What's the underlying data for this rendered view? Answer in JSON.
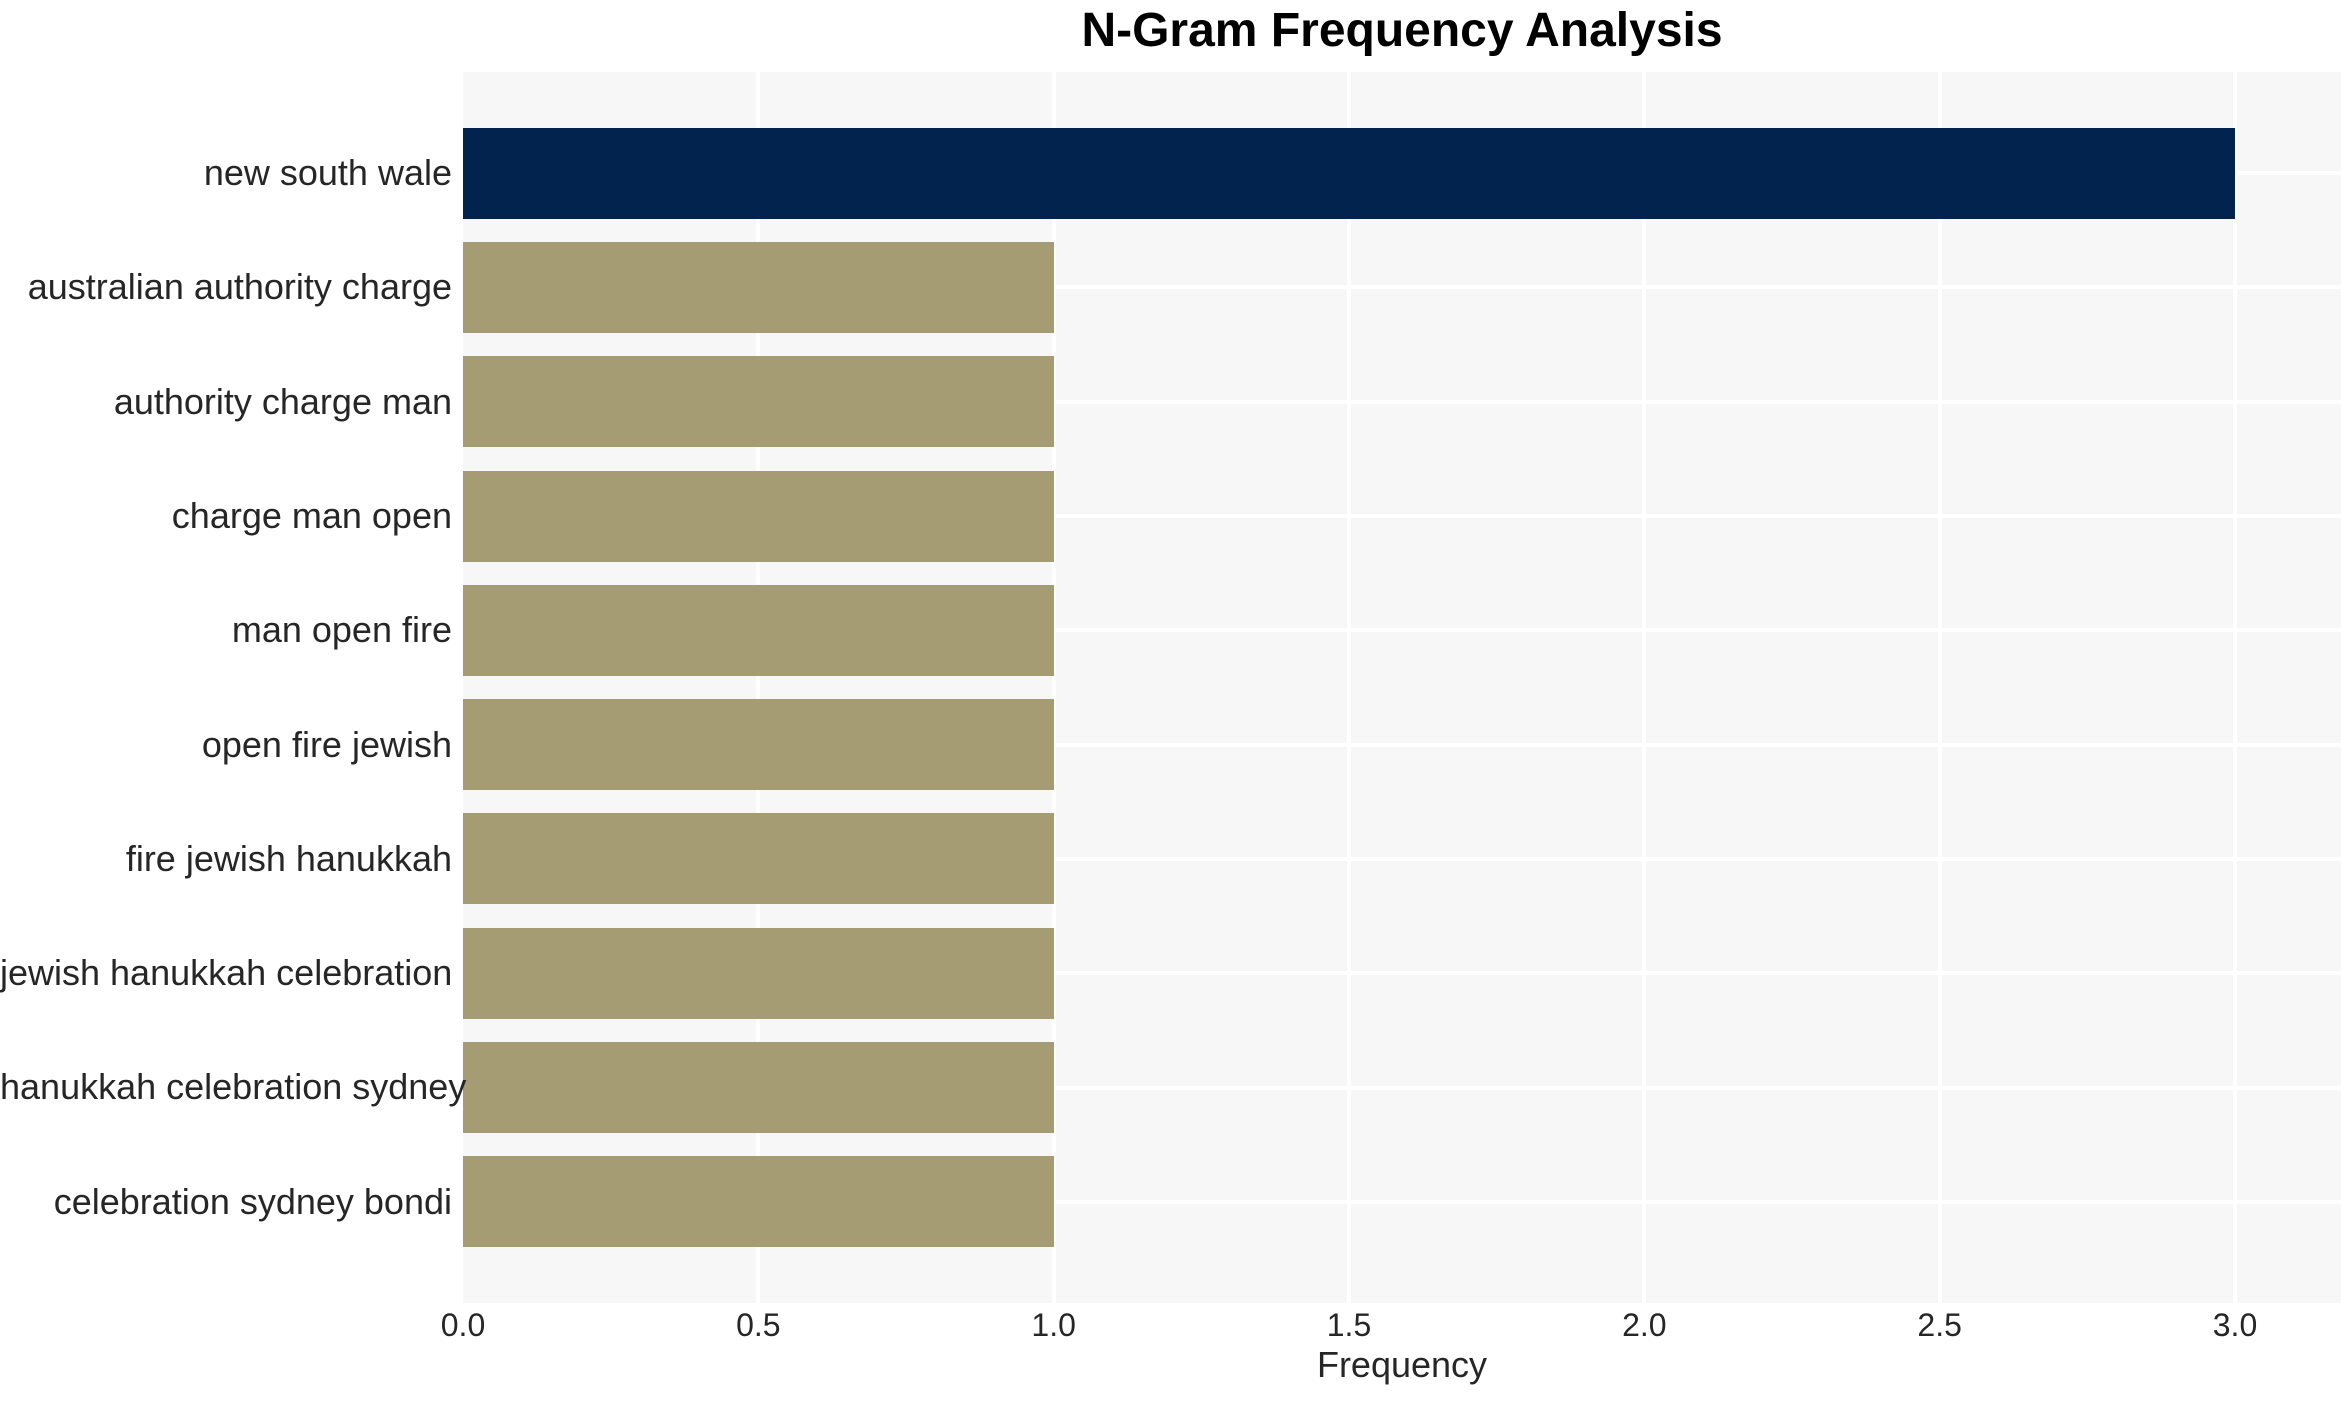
{
  "chart_data": {
    "type": "bar",
    "orientation": "horizontal",
    "title": "N-Gram Frequency Analysis",
    "xlabel": "Frequency",
    "ylabel": "",
    "categories": [
      "new south wale",
      "australian authority charge",
      "authority charge man",
      "charge man open",
      "man open fire",
      "open fire jewish",
      "fire jewish hanukkah",
      "jewish hanukkah celebration",
      "hanukkah celebration sydney",
      "celebration sydney bondi"
    ],
    "values": [
      3,
      1,
      1,
      1,
      1,
      1,
      1,
      1,
      1,
      1
    ],
    "bar_colors": [
      "#02234D",
      "#A59C73",
      "#A59C73",
      "#A59C73",
      "#A59C73",
      "#A59C73",
      "#A59C73",
      "#A59C73",
      "#A59C73",
      "#A59C73"
    ],
    "xticks": [
      0,
      0.5,
      1,
      1.5,
      2,
      2.5,
      3
    ],
    "xtick_labels": [
      "0.0",
      "0.5",
      "1.0",
      "1.5",
      "2.0",
      "2.5",
      "3.0"
    ],
    "xlim": [
      0,
      3.18
    ],
    "grid": true,
    "legend": false,
    "colors": {
      "highlight_bar": "#02234D",
      "default_bar": "#A59C73",
      "plot_background": "#F7F7F7",
      "grid_line": "#FFFFFF",
      "text": "#262626",
      "title_text": "#000000"
    }
  }
}
